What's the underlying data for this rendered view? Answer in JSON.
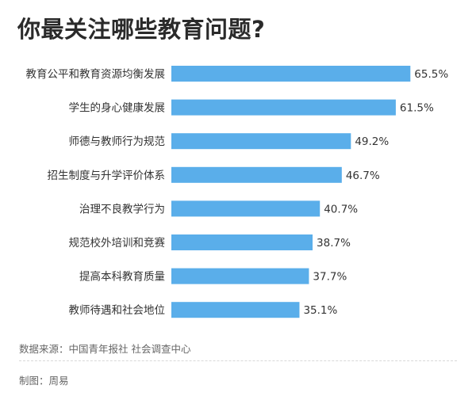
{
  "title": "你最关注哪些教育问题?",
  "source": "数据来源：中国青年报社 社会调查中心",
  "credit": "制图：周易",
  "colors": {
    "bar": "#5aaeea",
    "label": "#333333",
    "value": "#333333"
  },
  "chart_data": {
    "type": "bar",
    "orientation": "horizontal",
    "categories": [
      "教育公平和教育资源均衡发展",
      "学生的身心健康发展",
      "师德与教师行为规范",
      "招生制度与升学评价体系",
      "治理不良教学行为",
      "规范校外培训和竞赛",
      "提高本科教育质量",
      "教师待遇和社会地位"
    ],
    "values": [
      65.5,
      61.5,
      49.2,
      46.7,
      40.7,
      38.7,
      37.7,
      35.1
    ],
    "value_labels": [
      "65.5%",
      "61.5%",
      "49.2%",
      "46.7%",
      "40.7%",
      "38.7%",
      "37.7%",
      "35.1%"
    ],
    "xlim": [
      0,
      100
    ],
    "grid": false,
    "legend": "none"
  }
}
